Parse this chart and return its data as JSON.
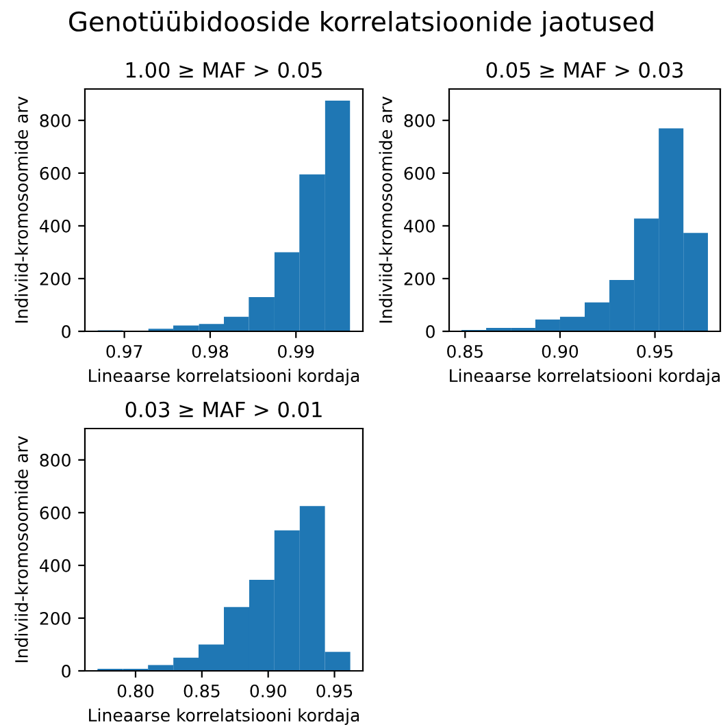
{
  "chart_data": [
    {
      "type": "histogram",
      "title": "Genotüübidooside korrelatsioonide jaotused",
      "subtitle": "1.00 ≥ MAF > 0.05",
      "xlabel": "Lineaarse korrelatsiooni kordaja",
      "ylabel": "Indiviid-kromosoomide arv",
      "bins": [
        0.9669,
        0.9698,
        0.9728,
        0.9757,
        0.9787,
        0.9816,
        0.9845,
        0.9875,
        0.9904,
        0.9934,
        0.9963
      ],
      "values": [
        4,
        2,
        10,
        22,
        28,
        55,
        130,
        300,
        595,
        875
      ],
      "color": "#1f77b4",
      "xlim": [
        0.9654,
        0.9978
      ],
      "xticks": [
        {
          "value": 0.97,
          "label": "0.97"
        },
        {
          "value": 0.98,
          "label": "0.98"
        },
        {
          "value": 0.99,
          "label": "0.99"
        }
      ],
      "ylim": [
        0,
        919
      ],
      "yticks": [
        0,
        200,
        400,
        600,
        800
      ],
      "grid": false,
      "legend": false
    },
    {
      "type": "histogram",
      "subtitle": "0.05 ≥ MAF > 0.03",
      "xlabel": "Lineaarse korrelatsiooni kordaja",
      "ylabel": "Indiviid-kromosoomide arv",
      "bins": [
        0.8481,
        0.8611,
        0.8741,
        0.887,
        0.9,
        0.913,
        0.926,
        0.939,
        0.952,
        0.965,
        0.9779
      ],
      "values": [
        5,
        13,
        13,
        45,
        55,
        110,
        195,
        428,
        770,
        373
      ],
      "color": "#1f77b4",
      "xlim": [
        0.8416,
        0.9844
      ],
      "xticks": [
        {
          "value": 0.85,
          "label": "0.85"
        },
        {
          "value": 0.9,
          "label": "0.90"
        },
        {
          "value": 0.95,
          "label": "0.95"
        }
      ],
      "ylim": [
        0,
        919
      ],
      "yticks": [
        0,
        200,
        400,
        600,
        800
      ],
      "grid": false,
      "legend": false
    },
    {
      "type": "histogram",
      "subtitle": "0.03 ≥ MAF > 0.01",
      "xlabel": "Lineaarse korrelatsiooni kordaja",
      "ylabel": "Indiviid-kromosoomide arv",
      "bins": [
        0.7713,
        0.7904,
        0.8094,
        0.8285,
        0.8475,
        0.8666,
        0.8857,
        0.9047,
        0.9238,
        0.9428,
        0.9619
      ],
      "values": [
        8,
        8,
        22,
        50,
        100,
        242,
        345,
        533,
        625,
        72
      ],
      "color": "#1f77b4",
      "xlim": [
        0.7618,
        0.9714
      ],
      "xticks": [
        {
          "value": 0.8,
          "label": "0.80"
        },
        {
          "value": 0.85,
          "label": "0.85"
        },
        {
          "value": 0.9,
          "label": "0.90"
        },
        {
          "value": 0.95,
          "label": "0.95"
        }
      ],
      "ylim": [
        0,
        919
      ],
      "yticks": [
        0,
        200,
        400,
        600,
        800
      ],
      "grid": false,
      "legend": false
    }
  ]
}
